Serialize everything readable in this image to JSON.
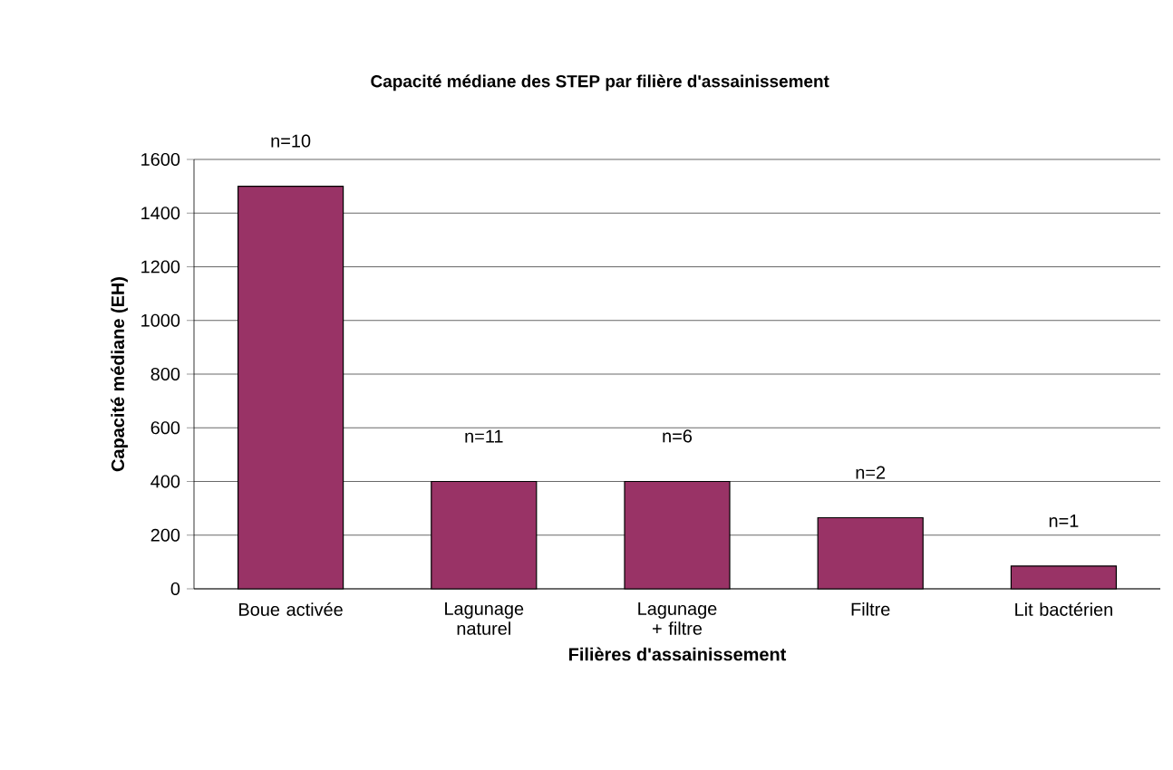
{
  "chart_data": {
    "type": "bar",
    "title": "Capacité médiane des STEP par filière d'assainissement",
    "xlabel": "Filières d'assainissement",
    "ylabel": "Capacité médiane (EH)",
    "categories": [
      "Boue activée",
      "Lagunage naturel",
      "Lagunage + filtre",
      "Filtre",
      "Lit bactérien"
    ],
    "values": [
      1500,
      400,
      400,
      265,
      85
    ],
    "color": "#993366",
    "ylim": [
      0,
      1600
    ],
    "yticks": [
      0,
      200,
      400,
      600,
      800,
      1000,
      1200,
      1400,
      1600
    ],
    "grid": "y",
    "annotations": [
      {
        "text": "n=10",
        "x": "Boue activée",
        "y": 1500
      },
      {
        "text": "n=11",
        "x": "Lagunage naturel",
        "y": 400
      },
      {
        "text": "n=6",
        "x": "Lagunage + filtre",
        "y": 400
      },
      {
        "text": "n=2",
        "x": "Filtre",
        "y": 265
      },
      {
        "text": "n=1",
        "x": "Lit bactérien",
        "y": 85
      }
    ]
  }
}
